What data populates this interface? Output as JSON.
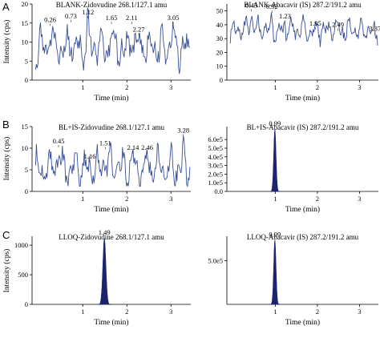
{
  "panel_letters": [
    "A",
    "B",
    "C"
  ],
  "chart_data": [
    {
      "panel": "A",
      "type": "line",
      "style": "noise",
      "title": "BLANK-Zidovudine 268.1/127.1 amu",
      "xlabel": "Time (min)",
      "ylabel": "Intensity (cps)",
      "xlim": [
        -0.15,
        3.45
      ],
      "ylim": [
        0,
        20
      ],
      "xticks": [
        1,
        2,
        3
      ],
      "yticks": [
        0,
        5,
        10,
        15,
        20
      ],
      "baseline": 8.5,
      "amplitude": 3.5,
      "peaks": [
        {
          "x": 0.26,
          "y": 14,
          "label": "0.26"
        },
        {
          "x": 0.73,
          "y": 15,
          "label": "0.73"
        },
        {
          "x": 1.12,
          "y": 16,
          "label": "1.12"
        },
        {
          "x": 1.65,
          "y": 14.5,
          "label": "1.65"
        },
        {
          "x": 2.11,
          "y": 14.5,
          "label": "2.11"
        },
        {
          "x": 2.27,
          "y": 11.5,
          "label": "2.27"
        },
        {
          "x": 3.05,
          "y": 14.5,
          "label": "3.05"
        }
      ]
    },
    {
      "panel": "A",
      "type": "line",
      "style": "noise",
      "title": "BLANK-Abacavir (IS) 287.2/191.2 amu",
      "xlabel": "Time (min)",
      "ylabel": "",
      "xlim": [
        -0.15,
        3.45
      ],
      "ylim": [
        0,
        55
      ],
      "xticks": [
        1,
        2,
        3
      ],
      "yticks": [
        0,
        10,
        20,
        30,
        40,
        50
      ],
      "baseline": 36,
      "amplitude": 6,
      "peaks": [
        {
          "x": 0.43,
          "y": 49,
          "label": "0.43"
        },
        {
          "x": 0.92,
          "y": 48,
          "label": "0.92"
        },
        {
          "x": 1.23,
          "y": 41,
          "label": "1.23"
        },
        {
          "x": 1.95,
          "y": 36,
          "label": "1.95"
        },
        {
          "x": 2.49,
          "y": 35,
          "label": "2.49"
        },
        {
          "x": 3.37,
          "y": 32,
          "label": "3.37"
        }
      ]
    },
    {
      "panel": "B",
      "type": "line",
      "style": "noise",
      "title": "BL+IS-Zidovudine 268.1/127.1 amu",
      "xlabel": "Time (min)",
      "ylabel": "Intensity (cps)",
      "xlim": [
        -0.15,
        3.45
      ],
      "ylim": [
        0,
        15
      ],
      "xticks": [
        1,
        2,
        3
      ],
      "yticks": [
        0,
        5,
        10,
        15
      ],
      "baseline": 5.5,
      "amplitude": 3,
      "peaks": [
        {
          "x": 0.45,
          "y": 10,
          "label": "0.45"
        },
        {
          "x": 1.16,
          "y": 6.5,
          "label": "1.16"
        },
        {
          "x": 1.51,
          "y": 9.5,
          "label": "1.51"
        },
        {
          "x": 2.14,
          "y": 8.5,
          "label": "2.14"
        },
        {
          "x": 2.46,
          "y": 8.5,
          "label": "2.46"
        },
        {
          "x": 3.28,
          "y": 12.5,
          "label": "3.28"
        }
      ]
    },
    {
      "panel": "B",
      "type": "area",
      "style": "peak",
      "title": "BL+IS-Abacavir (IS) 287.2/191.2 amu",
      "xlabel": "Time (min)",
      "ylabel": "",
      "xlim": [
        -0.15,
        3.45
      ],
      "ylim": [
        0,
        750000
      ],
      "xticks": [
        1,
        2,
        3
      ],
      "yticks": [
        0,
        100000,
        200000,
        300000,
        400000,
        500000,
        600000
      ],
      "ytick_labels": [
        "0.0",
        "1.0e5",
        "2.0e5",
        "3.0e5",
        "4.0e5",
        "5.0e5",
        "6.0e5"
      ],
      "peak": {
        "x": 0.99,
        "height": 720000,
        "sigma": 0.028,
        "label": "0.99"
      }
    },
    {
      "panel": "C",
      "type": "area",
      "style": "peak",
      "title": "LLOQ-Zidovudine 268.1/127.1 amu",
      "xlabel": "Time (min)",
      "ylabel": "Intensity (cps)",
      "xlim": [
        -0.15,
        3.45
      ],
      "ylim": [
        0,
        1150
      ],
      "xticks": [
        1,
        2,
        3
      ],
      "yticks": [
        0,
        500,
        1000
      ],
      "peak": {
        "x": 1.49,
        "height": 1120,
        "sigma": 0.035,
        "label": "1.49"
      }
    },
    {
      "panel": "C",
      "type": "area",
      "style": "peak",
      "title": "LLOQ-Abacavir (IS) 287.2/191.2 amu",
      "xlabel": "Time (min)",
      "ylabel": "",
      "xlim": [
        -0.15,
        3.45
      ],
      "ylim": [
        0,
        780000
      ],
      "xticks": [
        1,
        2,
        3
      ],
      "yticks": [
        500000
      ],
      "ytick_labels": [
        "5.0e5"
      ],
      "peak": {
        "x": 0.99,
        "height": 740000,
        "sigma": 0.028,
        "label": "0.99"
      }
    }
  ]
}
